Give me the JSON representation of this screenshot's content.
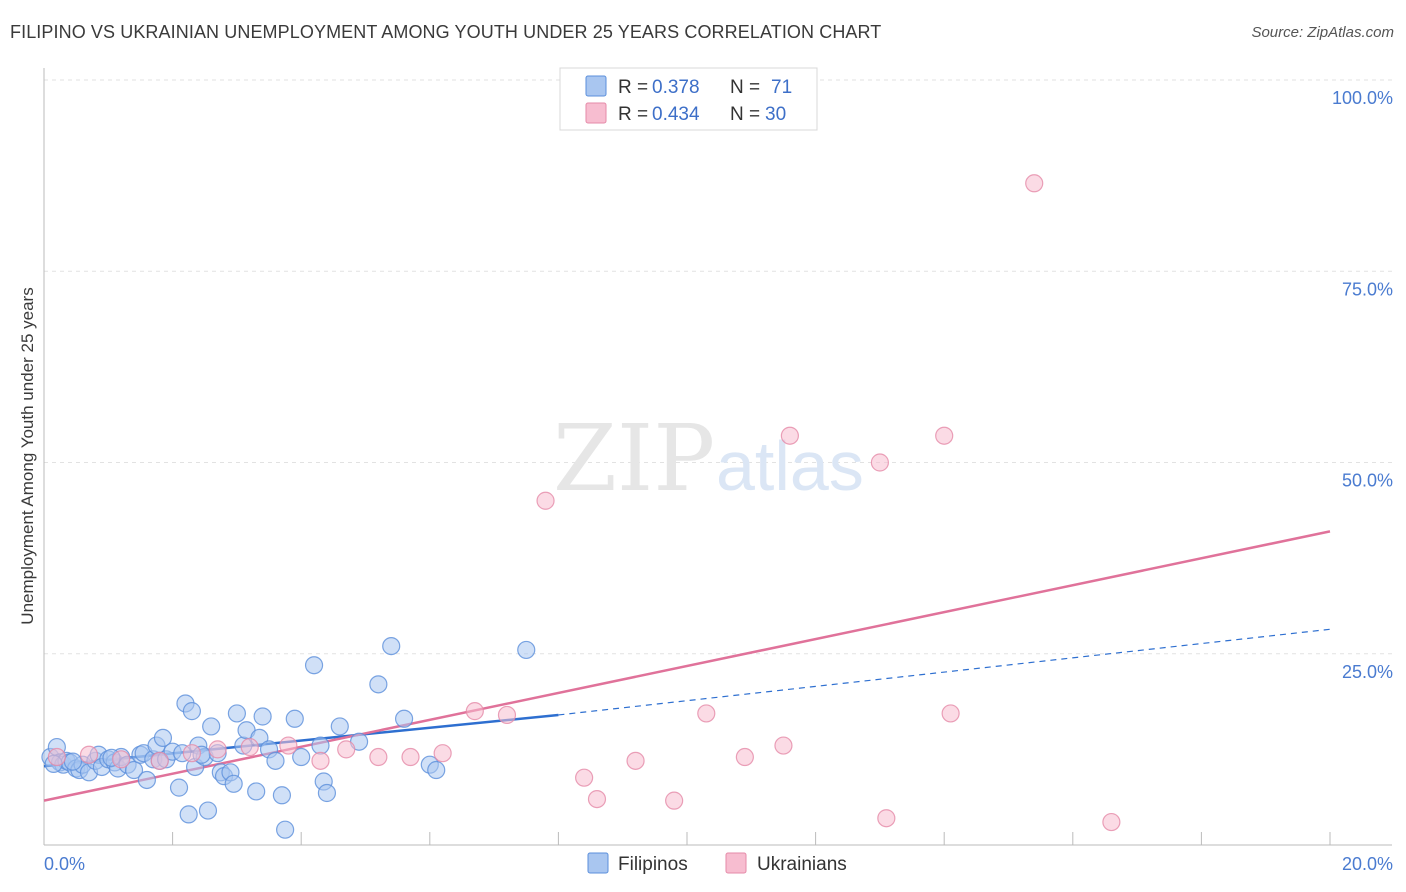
{
  "title": "FILIPINO VS UKRAINIAN UNEMPLOYMENT AMONG YOUTH UNDER 25 YEARS CORRELATION CHART",
  "source": "Source: ZipAtlas.com",
  "watermark": {
    "zip": "ZIP",
    "atlas": "atlas"
  },
  "legend_top": [
    {
      "r_label": "R = ",
      "r_value": "0.378",
      "n_label": "N = ",
      "n_value": "71"
    },
    {
      "r_label": "R = ",
      "r_value": "0.434",
      "n_label": "N = ",
      "n_value": "30"
    }
  ],
  "legend_bottom": [
    "Filipinos",
    "Ukrainians"
  ],
  "colors": {
    "filipino_fill": "#a9c6f0",
    "filipino_stroke": "#5b8fdb",
    "filipino_line": "#2e6fd0",
    "ukrainian_fill": "#f7bdd0",
    "ukrainian_stroke": "#e58aa8",
    "ukrainian_line": "#e0729a",
    "tick_text": "#4a7bd0"
  },
  "chart_data": {
    "type": "scatter",
    "title": "FILIPINO VS UKRAINIAN UNEMPLOYMENT AMONG YOUTH UNDER 25 YEARS CORRELATION CHART",
    "xlabel": "",
    "ylabel": "Unemployment Among Youth under 25 years",
    "xlim": [
      0,
      20
    ],
    "ylim": [
      0,
      100
    ],
    "x_tick_labels": [
      "0.0%",
      "20.0%"
    ],
    "y_tick_labels": [
      "25.0%",
      "50.0%",
      "75.0%",
      "100.0%"
    ],
    "y_ticks": [
      25,
      50,
      75,
      100
    ],
    "grid": true,
    "legend": "top-center",
    "series": [
      {
        "name": "Filipinos",
        "r": 0.378,
        "n": 71,
        "trend": {
          "x0": 0,
          "y0": 10.3,
          "x1": 8.0,
          "y1": 17.0,
          "dashed_to_x": 20,
          "dashed_to_y": 28.2
        },
        "points": [
          [
            0.1,
            11.5
          ],
          [
            0.2,
            12.8
          ],
          [
            0.25,
            10.8
          ],
          [
            0.3,
            10.5
          ],
          [
            0.35,
            11.0
          ],
          [
            0.4,
            10.8
          ],
          [
            0.5,
            10.0
          ],
          [
            0.55,
            9.8
          ],
          [
            0.6,
            10.5
          ],
          [
            0.7,
            9.5
          ],
          [
            0.8,
            11.0
          ],
          [
            0.85,
            11.8
          ],
          [
            0.9,
            10.2
          ],
          [
            1.0,
            11.2
          ],
          [
            1.1,
            10.8
          ],
          [
            1.15,
            10.0
          ],
          [
            1.2,
            11.5
          ],
          [
            1.3,
            10.5
          ],
          [
            1.4,
            9.8
          ],
          [
            1.5,
            11.8
          ],
          [
            1.55,
            12.0
          ],
          [
            1.6,
            8.5
          ],
          [
            1.7,
            11.2
          ],
          [
            1.75,
            13.0
          ],
          [
            1.8,
            11.0
          ],
          [
            1.85,
            14.0
          ],
          [
            1.9,
            11.2
          ],
          [
            2.0,
            12.2
          ],
          [
            2.1,
            7.5
          ],
          [
            2.15,
            12.0
          ],
          [
            2.2,
            18.5
          ],
          [
            2.25,
            4.0
          ],
          [
            2.3,
            17.5
          ],
          [
            2.35,
            10.2
          ],
          [
            2.4,
            13.0
          ],
          [
            2.5,
            11.5
          ],
          [
            2.55,
            4.5
          ],
          [
            2.6,
            15.5
          ],
          [
            2.7,
            12.0
          ],
          [
            2.75,
            9.5
          ],
          [
            2.8,
            9.0
          ],
          [
            2.9,
            9.5
          ],
          [
            2.95,
            8.0
          ],
          [
            3.0,
            17.2
          ],
          [
            3.1,
            13.0
          ],
          [
            3.15,
            15.0
          ],
          [
            3.3,
            7.0
          ],
          [
            3.35,
            14.0
          ],
          [
            3.4,
            16.8
          ],
          [
            3.5,
            12.5
          ],
          [
            3.6,
            11.0
          ],
          [
            3.7,
            6.5
          ],
          [
            3.75,
            2.0
          ],
          [
            3.9,
            16.5
          ],
          [
            4.0,
            11.5
          ],
          [
            4.2,
            23.5
          ],
          [
            4.3,
            13.0
          ],
          [
            4.35,
            8.3
          ],
          [
            4.4,
            6.8
          ],
          [
            4.6,
            15.5
          ],
          [
            4.9,
            13.5
          ],
          [
            5.2,
            21.0
          ],
          [
            5.4,
            26.0
          ],
          [
            5.6,
            16.5
          ],
          [
            6.0,
            10.5
          ],
          [
            6.1,
            9.8
          ],
          [
            7.5,
            25.5
          ],
          [
            0.15,
            10.6
          ],
          [
            0.45,
            10.9
          ],
          [
            1.05,
            11.4
          ],
          [
            2.45,
            11.8
          ]
        ]
      },
      {
        "name": "Ukrainians",
        "r": 0.434,
        "n": 30,
        "trend": {
          "x0": 0,
          "y0": 5.8,
          "x1": 20,
          "y1": 41.0
        },
        "points": [
          [
            0.2,
            11.5
          ],
          [
            0.7,
            11.8
          ],
          [
            1.2,
            11.2
          ],
          [
            1.8,
            11.0
          ],
          [
            2.3,
            12.0
          ],
          [
            2.7,
            12.5
          ],
          [
            3.2,
            12.8
          ],
          [
            3.8,
            13.0
          ],
          [
            4.3,
            11.0
          ],
          [
            4.7,
            12.5
          ],
          [
            5.2,
            11.5
          ],
          [
            5.7,
            11.5
          ],
          [
            6.2,
            12.0
          ],
          [
            6.7,
            17.5
          ],
          [
            7.2,
            17.0
          ],
          [
            7.8,
            45.0
          ],
          [
            8.4,
            8.8
          ],
          [
            8.6,
            6.0
          ],
          [
            9.2,
            11.0
          ],
          [
            9.8,
            5.8
          ],
          [
            10.3,
            17.2
          ],
          [
            10.9,
            11.5
          ],
          [
            11.5,
            13.0
          ],
          [
            11.6,
            53.5
          ],
          [
            13.0,
            50.0
          ],
          [
            13.1,
            3.5
          ],
          [
            14.0,
            53.5
          ],
          [
            14.1,
            17.2
          ],
          [
            15.4,
            86.5
          ],
          [
            16.6,
            3.0
          ]
        ]
      }
    ]
  }
}
